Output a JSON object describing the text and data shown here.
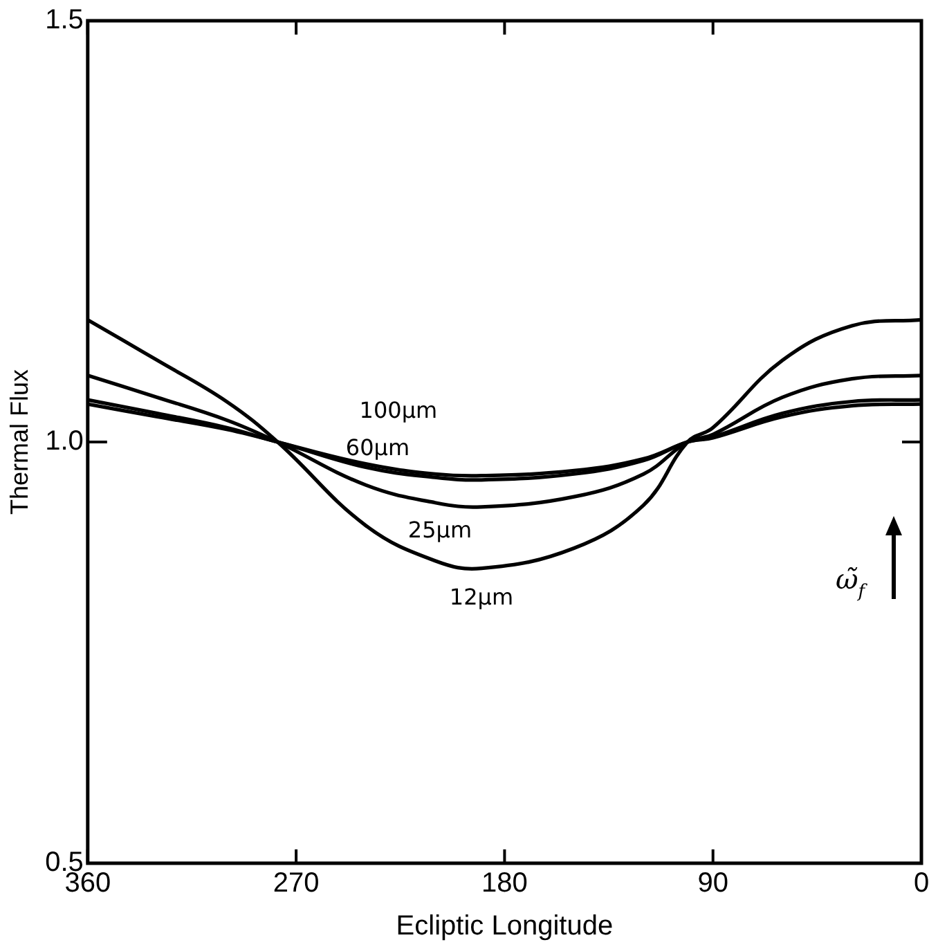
{
  "chart_data": {
    "type": "line",
    "xlabel": "Ecliptic Longitude",
    "ylabel": "Thermal Flux",
    "x": [
      360,
      330,
      300,
      278,
      240,
      210,
      190,
      150,
      120,
      101,
      90,
      60,
      30,
      0
    ],
    "xlim": [
      360,
      0
    ],
    "xticks": [
      360,
      270,
      180,
      90,
      0
    ],
    "ylim": [
      0.5,
      1.5
    ],
    "yticks": [
      0.5,
      {
        "value": 1,
        "label": "1.0"
      },
      1.5
    ],
    "grid": false,
    "legend": false,
    "marker": "none",
    "line_style": "solid",
    "series": [
      {
        "name": "12μm",
        "color": "#000000",
        "values": [
          1.145,
          1.097,
          1.048,
          1.0,
          0.901,
          0.859,
          0.85,
          0.874,
          0.925,
          1.0,
          1.017,
          1.097,
          1.138,
          1.145
        ]
      },
      {
        "name": "25μm",
        "color": "#000000",
        "values": [
          1.079,
          1.053,
          1.026,
          1.0,
          0.949,
          0.928,
          0.923,
          0.935,
          0.962,
          1.0,
          1.009,
          1.053,
          1.075,
          1.079
        ]
      },
      {
        "name": "60μm",
        "color": "#000000",
        "values": [
          1.045,
          1.03,
          1.015,
          1.0,
          0.97,
          0.958,
          0.955,
          0.962,
          0.978,
          1.0,
          1.005,
          1.03,
          1.043,
          1.045
        ]
      },
      {
        "name": "100μm",
        "color": "#000000",
        "values": [
          1.05,
          1.034,
          1.017,
          1.0,
          0.974,
          0.962,
          0.96,
          0.966,
          0.98,
          1.0,
          1.006,
          1.034,
          1.048,
          1.05
        ]
      }
    ],
    "annotations": [
      "ω̃$_{f}$"
    ]
  }
}
